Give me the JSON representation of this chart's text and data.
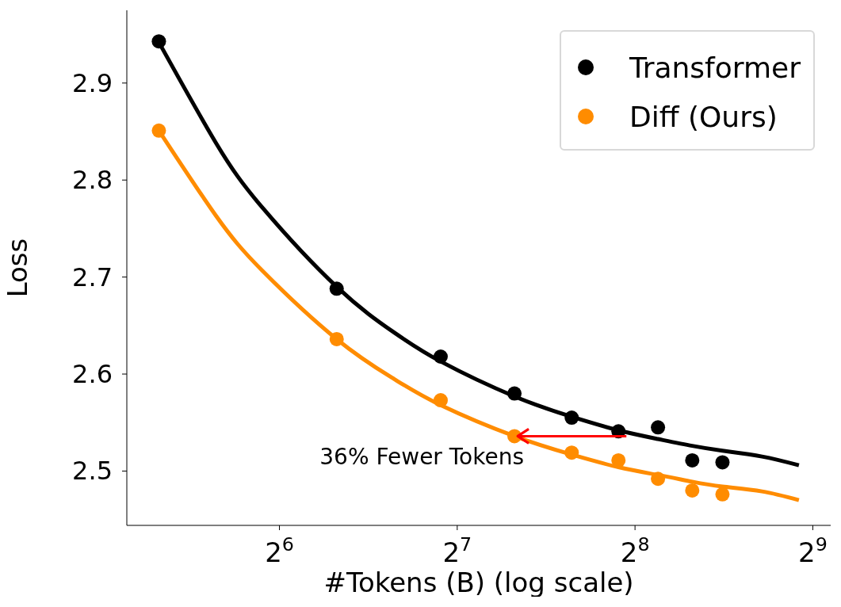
{
  "chart_data": {
    "type": "scatter",
    "xlabel": "#Tokens (B) (log scale)",
    "ylabel": "Loss",
    "log": "x",
    "grid": false,
    "legend": "top right",
    "xlim": [
      35.3,
      549
    ],
    "ylim": [
      2.444,
      2.975
    ],
    "xticks": [
      {
        "value": 64,
        "label": "2$^{6}$"
      },
      {
        "value": 128,
        "label": "2$^{7}$"
      },
      {
        "value": 256,
        "label": "2$^{8}$"
      },
      {
        "value": 512,
        "label": "2$^{9}$"
      }
    ],
    "yticks": [
      2.5,
      2.6,
      2.7,
      2.8,
      2.9
    ],
    "annotations": [
      {
        "text": "36% Fewer Tokens",
        "x": 160,
        "y": 2.536
      }
    ],
    "series": [
      {
        "name": "Transformer",
        "marker": "circle",
        "color": "#000000",
        "x": [
          40,
          80,
          120,
          160,
          200,
          240,
          280,
          320,
          360
        ],
        "values": [
          2.943,
          2.688,
          2.618,
          2.58,
          2.555,
          2.541,
          2.545,
          2.511,
          2.509
        ]
      },
      {
        "name": "Diff (Ours)",
        "marker": "circle",
        "color": "#ff8c00",
        "x": [
          40,
          80,
          120,
          160,
          200,
          240,
          280,
          320,
          360
        ],
        "values": [
          2.851,
          2.636,
          2.573,
          2.536,
          2.519,
          2.511,
          2.492,
          2.48,
          2.476
        ]
      },
      {
        "type": "line",
        "marker": "none",
        "color": "#000000",
        "x": [
          40,
          50,
          60,
          80,
          100,
          120,
          160,
          200,
          240,
          280,
          320,
          360,
          420,
          485
        ],
        "values": [
          2.942,
          2.838,
          2.771,
          2.69,
          2.643,
          2.613,
          2.577,
          2.556,
          2.542,
          2.533,
          2.526,
          2.521,
          2.515,
          2.506
        ]
      },
      {
        "type": "line",
        "marker": "none",
        "color": "#ff8c00",
        "x": [
          40,
          50,
          60,
          80,
          100,
          120,
          160,
          200,
          240,
          280,
          320,
          360,
          420,
          485
        ],
        "values": [
          2.851,
          2.763,
          2.706,
          2.636,
          2.595,
          2.568,
          2.536,
          2.517,
          2.504,
          2.496,
          2.489,
          2.484,
          2.479,
          2.47
        ]
      }
    ]
  }
}
